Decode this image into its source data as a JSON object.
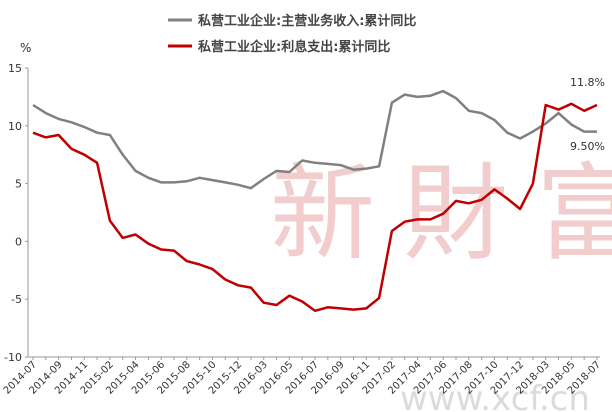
{
  "chart_data": {
    "type": "line",
    "unit_label": "%",
    "categories": [
      "2014-07",
      null,
      "2014-09",
      null,
      "2014-11",
      null,
      "2015-02",
      null,
      "2015-04",
      null,
      "2015-06",
      null,
      "2015-08",
      null,
      "2015-10",
      null,
      "2015-12",
      null,
      "2016-03",
      null,
      "2016-05",
      null,
      "2016-07",
      null,
      "2016-09",
      null,
      "2016-11",
      null,
      "2017-02",
      null,
      "2017-04",
      null,
      "2017-06",
      null,
      "2017-08",
      null,
      "2017-10",
      null,
      "2017-12",
      null,
      "2018-03",
      null,
      "2018-05",
      null,
      "2018-07"
    ],
    "series": [
      {
        "name": "私营工业企业:主营业务收入:累计同比",
        "color": "#808080",
        "values": [
          11.8,
          11.1,
          10.6,
          10.3,
          9.9,
          9.4,
          9.2,
          7.5,
          6.1,
          5.5,
          5.1,
          5.1,
          5.2,
          5.5,
          5.3,
          5.1,
          4.9,
          4.6,
          5.4,
          6.1,
          6.0,
          7.0,
          6.8,
          6.7,
          6.6,
          6.2,
          6.3,
          6.5,
          12.0,
          12.7,
          12.5,
          12.6,
          13.0,
          12.4,
          11.3,
          11.1,
          10.5,
          9.4,
          8.9,
          9.5,
          10.2,
          11.1,
          10.1,
          9.5,
          9.5
        ]
      },
      {
        "name": "私营工业企业:利息支出:累计同比",
        "color": "#c00000",
        "values": [
          9.4,
          9.0,
          9.2,
          8.0,
          7.5,
          6.8,
          1.8,
          0.3,
          0.6,
          -0.2,
          -0.7,
          -0.8,
          -1.7,
          -2.0,
          -2.4,
          -3.3,
          -3.8,
          -4.0,
          -5.3,
          -5.5,
          -4.7,
          -5.2,
          -6.0,
          -5.7,
          -5.8,
          -5.9,
          -5.8,
          -4.9,
          0.9,
          1.7,
          1.9,
          1.9,
          2.4,
          3.5,
          3.3,
          3.6,
          4.5,
          3.7,
          2.8,
          5.0,
          11.8,
          11.4,
          11.9,
          11.3,
          11.8
        ]
      }
    ],
    "annotations": [
      "11.8%",
      "9.50%"
    ],
    "watermark": [
      "新財富",
      "www.xcf.cn"
    ],
    "ylim": [
      -10,
      15
    ],
    "yticks": [
      -10,
      -5,
      0,
      5,
      10,
      15
    ]
  }
}
